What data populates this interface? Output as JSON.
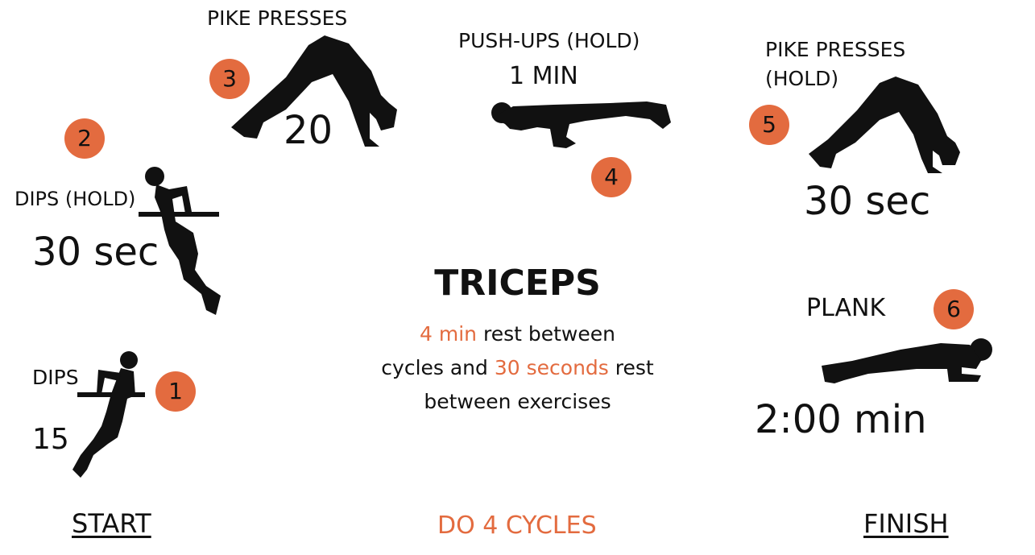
{
  "colors": {
    "accent": "#e36b3f",
    "text": "#111111",
    "background": "#ffffff"
  },
  "exercises": [
    {
      "step": "1",
      "name": "DIPS",
      "amount": "15",
      "icon": "dips-figure-icon"
    },
    {
      "step": "2",
      "name": "DIPS (HOLD)",
      "amount": "30 sec",
      "icon": "dips-hold-figure-icon"
    },
    {
      "step": "3",
      "name": "PIKE PRESSES",
      "amount": "20",
      "icon": "pike-press-figure-icon"
    },
    {
      "step": "4",
      "name": "PUSH-UPS (HOLD)",
      "amount": "1 MIN",
      "icon": "push-up-figure-icon"
    },
    {
      "step": "5",
      "name_line1": "PIKE PRESSES",
      "name_line2": "(HOLD)",
      "amount": "30 sec",
      "icon": "pike-press-hold-figure-icon"
    },
    {
      "step": "6",
      "name": "PLANK",
      "amount": "2:00 min",
      "icon": "plank-figure-icon"
    }
  ],
  "center": {
    "title": "TRICEPS",
    "rest_cycles": "4 min",
    "text1": " rest between",
    "text2": "cycles and ",
    "rest_exercises": "30 seconds",
    "text3": " rest",
    "text4": "between exercises"
  },
  "footer": {
    "start": "START",
    "cycles": "DO 4 CYCLES",
    "finish": "FINISH"
  }
}
